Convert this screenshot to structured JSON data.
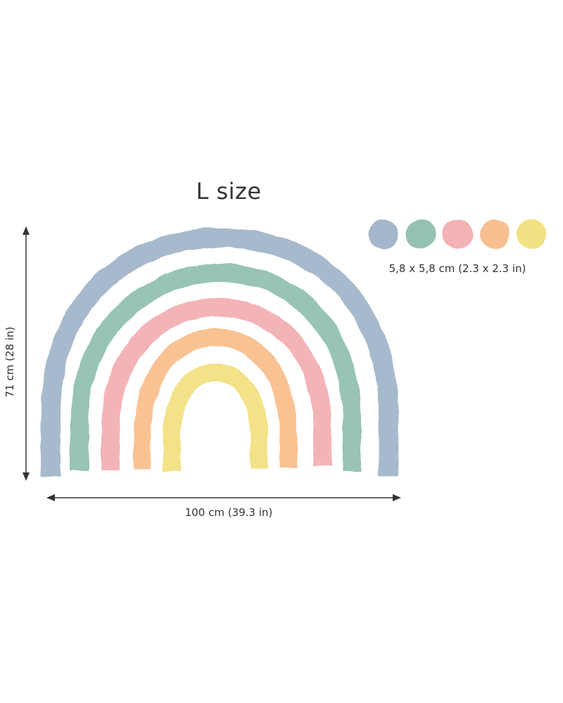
{
  "title": "L size",
  "width_dimension": "100 cm (39.3 in)",
  "height_dimension": "71 cm (28 in)",
  "dots_dimension": "5,8 x 5,8 cm (2.3 x 2.3 in)",
  "colors": {
    "blue": "#9fb3c8",
    "green": "#8ebfae",
    "pink": "#f2aeb1",
    "orange": "#f8bd8a",
    "yellow": "#f2e07d",
    "text": "#333333",
    "arrow": "#333333"
  },
  "rainbow_arcs": [
    "blue",
    "green",
    "pink",
    "orange",
    "yellow"
  ],
  "dots": [
    "blue",
    "green",
    "pink",
    "orange",
    "yellow"
  ]
}
